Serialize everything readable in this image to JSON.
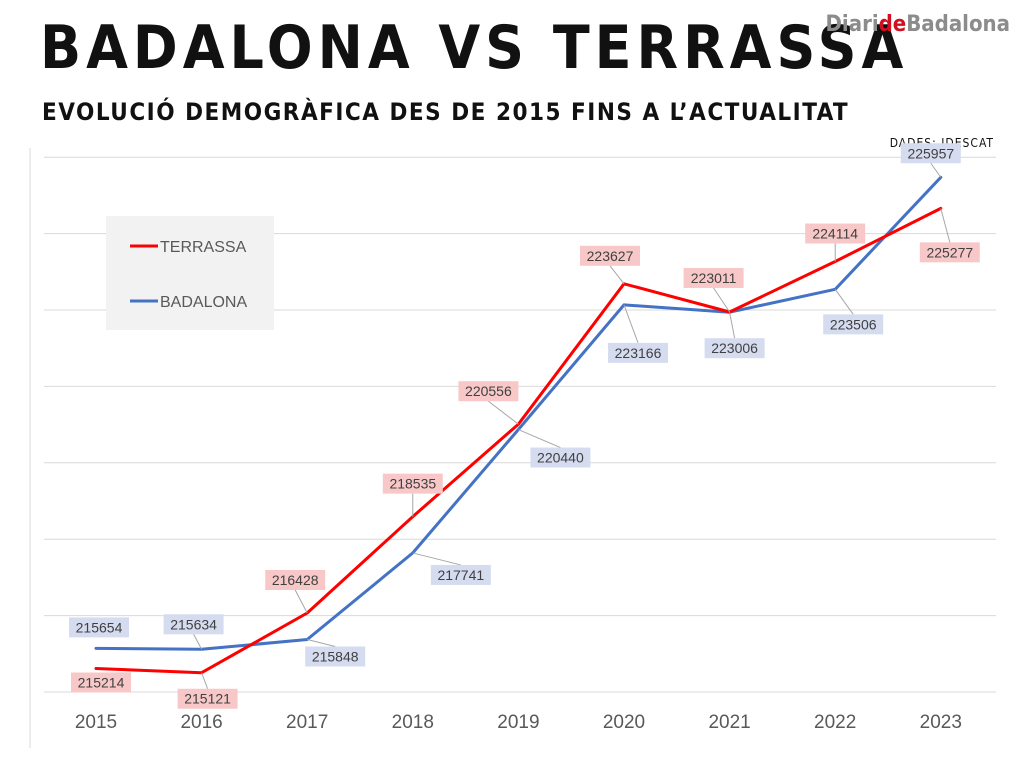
{
  "header": {
    "title": "BADALONA VS TERRASSA",
    "subtitle": "EVOLUCIÓ DEMOGRÀFICA DES DE 2015 FINS A L’ACTUALITAT",
    "source": "DADES: IDESCAT"
  },
  "brand": {
    "part1": "Diari",
    "part2": "de",
    "part3": "Badalona",
    "accent_color": "#d10f1f",
    "color": "#8c8c8c"
  },
  "chart_data": {
    "type": "line",
    "title": "",
    "xlabel": "",
    "ylabel": "",
    "x": [
      "2015",
      "2016",
      "2017",
      "2018",
      "2019",
      "2020",
      "2021",
      "2022",
      "2023"
    ],
    "ylim": [
      214700,
      226400
    ],
    "grid": true,
    "legend_position": "top-left",
    "series": [
      {
        "name": "TERRASSA",
        "color": "#ff0000",
        "label_bg": "#f8c8c8",
        "values": [
          215214,
          215121,
          216428,
          218535,
          220556,
          223627,
          223011,
          224114,
          225277
        ]
      },
      {
        "name": "BADALONA",
        "color": "#4472c4",
        "label_bg": "#d6dcf0",
        "values": [
          215654,
          215634,
          215848,
          217741,
          220440,
          223166,
          223006,
          223506,
          225957
        ]
      }
    ]
  }
}
